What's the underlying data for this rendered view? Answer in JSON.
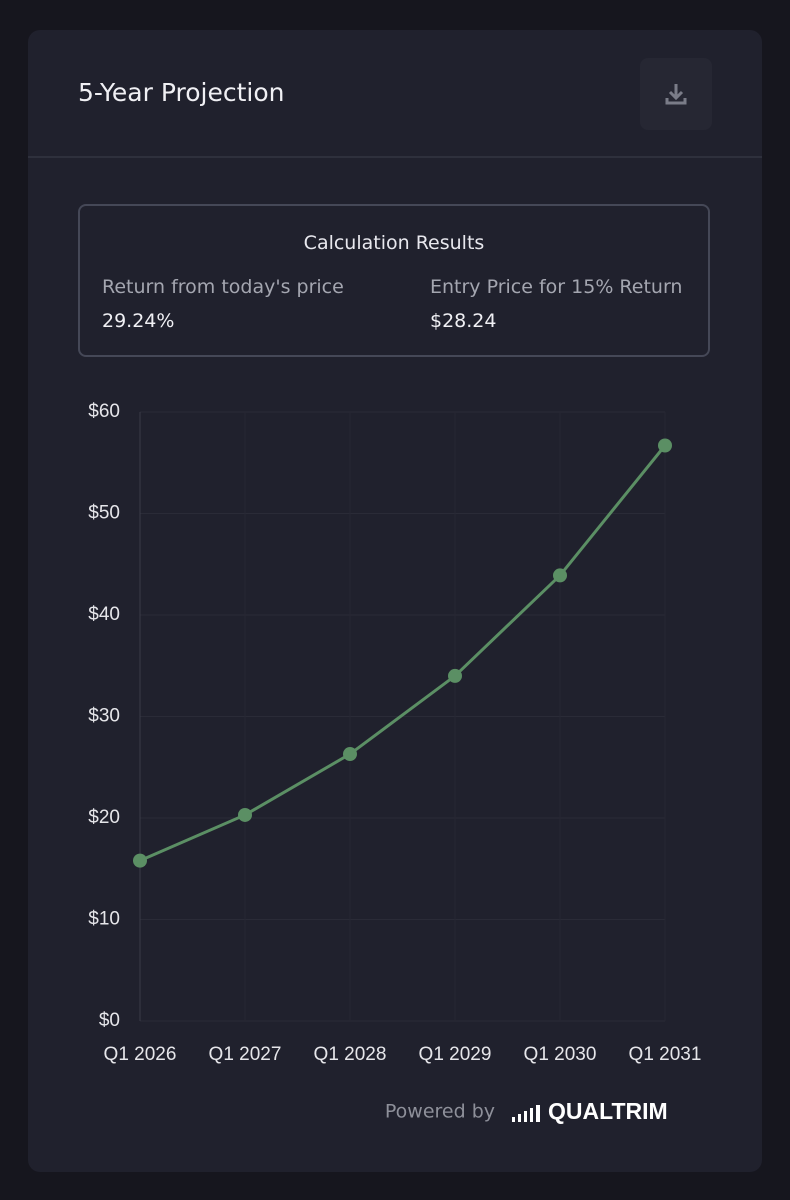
{
  "header": {
    "title": "5-Year Projection"
  },
  "results": {
    "title": "Calculation Results",
    "items": [
      {
        "label": "Return from today's price",
        "value": "29.24%"
      },
      {
        "label": "Entry Price for 15% Return",
        "value": "$28.24"
      }
    ]
  },
  "chart_data": {
    "type": "line",
    "categories": [
      "Q1 2026",
      "Q1 2027",
      "Q1 2028",
      "Q1 2029",
      "Q1 2030",
      "Q1 2031"
    ],
    "values": [
      15.8,
      20.3,
      26.3,
      34.0,
      43.9,
      56.7
    ],
    "color": "#5b8f64",
    "ylim": [
      0,
      60
    ],
    "yticks": [
      {
        "value": 0,
        "label": "$0"
      },
      {
        "value": 10,
        "label": "$10"
      },
      {
        "value": 20,
        "label": "$20"
      },
      {
        "value": 30,
        "label": "$30"
      },
      {
        "value": 40,
        "label": "$40"
      },
      {
        "value": 50,
        "label": "$50"
      },
      {
        "value": 60,
        "label": "$60"
      }
    ],
    "grid": true
  },
  "footer": {
    "text": "Powered by",
    "brand": "QUALTRIM"
  }
}
